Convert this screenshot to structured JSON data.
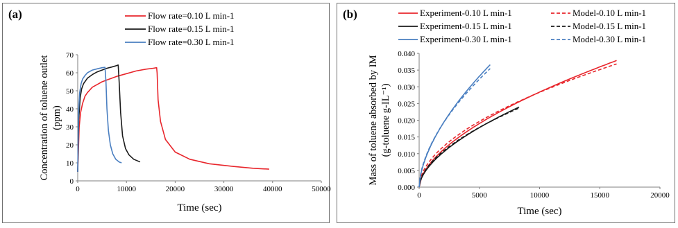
{
  "chart_data": [
    {
      "type": "line",
      "panel_label": "(a)",
      "xlabel": "Time (sec)",
      "ylabel_lines": [
        "Concentration of toluene outlet",
        "(ppm)"
      ],
      "xlim": [
        0,
        50000
      ],
      "ylim": [
        0,
        70
      ],
      "x_ticks": [
        0,
        10000,
        20000,
        30000,
        40000,
        50000
      ],
      "y_ticks": [
        0,
        10,
        20,
        30,
        40,
        50,
        60,
        70
      ],
      "grid": false,
      "legend_position": "top-center",
      "series": [
        {
          "name": "Flow rate=0.10 L min-1",
          "color": "#e8262c",
          "dashed": false,
          "x": [
            0,
            300,
            600,
            1000,
            1500,
            2000,
            3000,
            4000,
            5000,
            6000,
            8000,
            10000,
            12000,
            14000,
            15500,
            16200,
            16300,
            16500,
            17000,
            18000,
            20000,
            23000,
            27000,
            32000,
            36000,
            39300
          ],
          "y": [
            5,
            30,
            38,
            43,
            47,
            49,
            52,
            53.5,
            55,
            56,
            58,
            59.5,
            61,
            62,
            62.5,
            62.8,
            60,
            45,
            33,
            23,
            16,
            12,
            9.5,
            8,
            7,
            6.5
          ]
        },
        {
          "name": "Flow rate=0.15 L min-1",
          "color": "#1a1a1a",
          "dashed": false,
          "x": [
            0,
            200,
            500,
            800,
            1200,
            2000,
            3000,
            4000,
            5000,
            6000,
            7000,
            8000,
            8300,
            8500,
            8800,
            9200,
            9800,
            10500,
            11500,
            12800
          ],
          "y": [
            5,
            34,
            46,
            51,
            54,
            57,
            59,
            60.5,
            61.5,
            62.5,
            63.2,
            64,
            64.3,
            55,
            38,
            25,
            18,
            14.5,
            12,
            10.5
          ]
        },
        {
          "name": "Flow rate=0.30 L min-1",
          "color": "#4a7fc1",
          "dashed": false,
          "x": [
            0,
            150,
            400,
            700,
            1000,
            1500,
            2000,
            3000,
            4000,
            5000,
            5600,
            5800,
            6000,
            6300,
            6700,
            7200,
            7800,
            8500,
            9000
          ],
          "y": [
            5,
            38,
            49,
            54,
            56.5,
            58.5,
            60,
            61.5,
            62.2,
            62.8,
            63,
            55,
            40,
            28,
            20,
            15,
            12,
            10.5,
            10
          ]
        }
      ]
    },
    {
      "type": "line",
      "panel_label": "(b)",
      "xlabel": "Time (sec)",
      "ylabel_lines": [
        "Mass of toluene absorbed by IM",
        "(g-toluene g-IL⁻¹)"
      ],
      "xlim": [
        0,
        20000
      ],
      "ylim": [
        0,
        0.04
      ],
      "x_ticks": [
        0,
        5000,
        10000,
        15000,
        20000
      ],
      "y_ticks": [
        0,
        0.005,
        0.01,
        0.015,
        0.02,
        0.025,
        0.03,
        0.035,
        0.04
      ],
      "grid": false,
      "legend_position": "top",
      "series": [
        {
          "name": "Experiment-0.10 L min-1",
          "color": "#e8262c",
          "dashed": false,
          "fn": "power",
          "a": 0.000136,
          "p": 0.58,
          "xmax": 16400
        },
        {
          "name": "Model-0.10 L min-1",
          "color": "#e8262c",
          "dashed": true,
          "fn": "power",
          "a": 0.000215,
          "p": 0.53,
          "xmax": 16400
        },
        {
          "name": "Experiment-0.15 L min-1",
          "color": "#1a1a1a",
          "dashed": false,
          "fn": "power",
          "a": 0.000122,
          "p": 0.585,
          "xmax": 8300
        },
        {
          "name": "Model-0.15 L min-1",
          "color": "#1a1a1a",
          "dashed": true,
          "fn": "power",
          "a": 0.000158,
          "p": 0.555,
          "xmax": 8300
        },
        {
          "name": "Experiment-0.30 L min-1",
          "color": "#4a7fc1",
          "dashed": false,
          "fn": "power",
          "a": 0.0002,
          "p": 0.6,
          "xmax": 5900
        },
        {
          "name": "Model-0.30 L min-1",
          "color": "#4a7fc1",
          "dashed": true,
          "fn": "power",
          "a": 0.000247,
          "p": 0.572,
          "xmax": 5900
        }
      ]
    }
  ]
}
